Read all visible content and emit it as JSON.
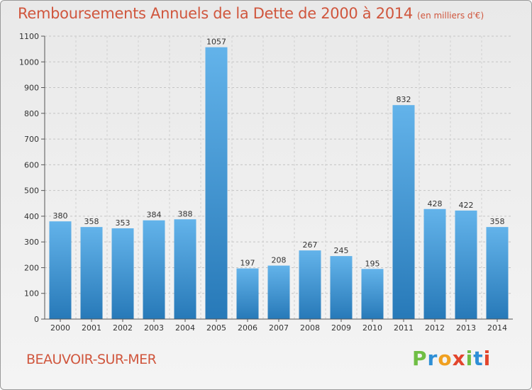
{
  "title": "Remboursements Annuels de la Dette de 2000 à 2014",
  "unit_note": "(en milliers d'€)",
  "city": "BEAUVOIR-SUR-MER",
  "brand": {
    "letters": [
      "P",
      "r",
      "o",
      "x",
      "i",
      "t",
      "i"
    ],
    "colors": [
      "#6fbe44",
      "#2e8fd6",
      "#f0a020",
      "#e2452c",
      "#6fbe44",
      "#2e8fd6",
      "#e2452c"
    ]
  },
  "colors": {
    "title": "#d0563d",
    "bar_light": "#63b3ea",
    "bar_dark": "#2779b8"
  },
  "chart_data": {
    "type": "bar",
    "categories": [
      "2000",
      "2001",
      "2002",
      "2003",
      "2004",
      "2005",
      "2006",
      "2007",
      "2008",
      "2009",
      "2010",
      "2011",
      "2012",
      "2013",
      "2014"
    ],
    "values": [
      380,
      358,
      353,
      384,
      388,
      1057,
      197,
      208,
      267,
      245,
      195,
      832,
      428,
      422,
      358
    ],
    "title": "Remboursements Annuels de la Dette de 2000 à 2014",
    "xlabel": "",
    "ylabel": "",
    "ylim": [
      0,
      1100
    ],
    "yticks": [
      0,
      100,
      200,
      300,
      400,
      500,
      600,
      700,
      800,
      900,
      1000,
      1100
    ],
    "grid": true,
    "data_labels": true
  }
}
